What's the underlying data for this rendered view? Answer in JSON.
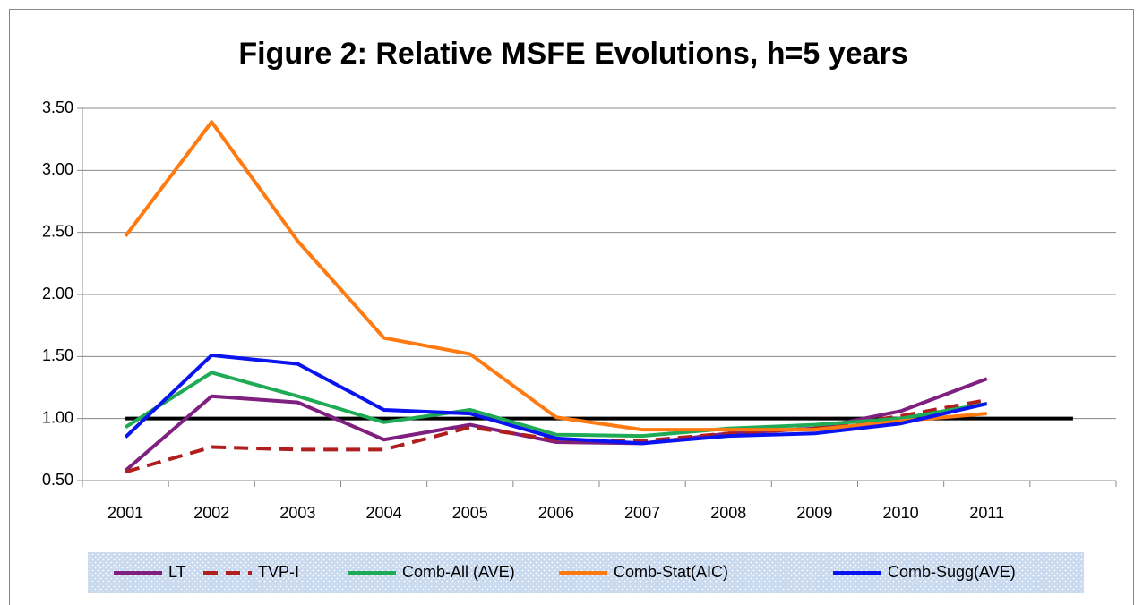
{
  "chart_data": {
    "type": "line",
    "title": "Figure 2: Relative MSFE Evolutions, h=5 years",
    "categories": [
      "2001",
      "2002",
      "2003",
      "2004",
      "2005",
      "2006",
      "2007",
      "2008",
      "2009",
      "2010",
      "2011",
      null
    ],
    "ylim": [
      0.5,
      3.5
    ],
    "yticks": [
      {
        "value": 0.5,
        "label": "0.50"
      },
      {
        "value": 1.0,
        "label": "1.00"
      },
      {
        "value": 1.5,
        "label": "1.50"
      },
      {
        "value": 2.0,
        "label": "2.00"
      },
      {
        "value": 2.5,
        "label": "2.50"
      },
      {
        "value": 3.0,
        "label": "3.00"
      },
      {
        "value": 3.5,
        "label": "3.50"
      }
    ],
    "grid": true,
    "legend": "bottom",
    "series": [
      {
        "name": "LT",
        "color": "#7f1f7f",
        "values": [
          0.58,
          1.18,
          1.13,
          0.83,
          0.95,
          0.81,
          0.8,
          0.88,
          0.92,
          1.06,
          1.32,
          null
        ]
      },
      {
        "name": "TVP-I",
        "color": "#b01e1e",
        "dashed": true,
        "values": [
          0.57,
          0.77,
          0.75,
          0.75,
          0.93,
          0.83,
          0.82,
          0.88,
          0.92,
          1.02,
          1.15,
          null
        ]
      },
      {
        "name": "Comb-All (AVE)",
        "color": "#1faa55",
        "values": [
          0.93,
          1.37,
          1.18,
          0.97,
          1.07,
          0.87,
          0.86,
          0.92,
          0.95,
          1.0,
          1.12,
          null
        ]
      },
      {
        "name": "Comb-Stat(AIC)",
        "color": "#ff7a10",
        "values": [
          2.47,
          3.39,
          2.43,
          1.65,
          1.52,
          1.01,
          0.91,
          0.91,
          0.91,
          0.98,
          1.04,
          null
        ]
      },
      {
        "name": "Comb-Sugg(AVE)",
        "color": "#0a14f0",
        "values": [
          0.85,
          1.51,
          1.44,
          1.07,
          1.04,
          0.84,
          0.8,
          0.86,
          0.88,
          0.96,
          1.12,
          null
        ]
      },
      {
        "color": "#000000",
        "values": [
          1,
          1,
          1,
          1,
          1,
          1,
          1,
          1,
          1,
          1,
          1,
          1
        ]
      }
    ]
  }
}
